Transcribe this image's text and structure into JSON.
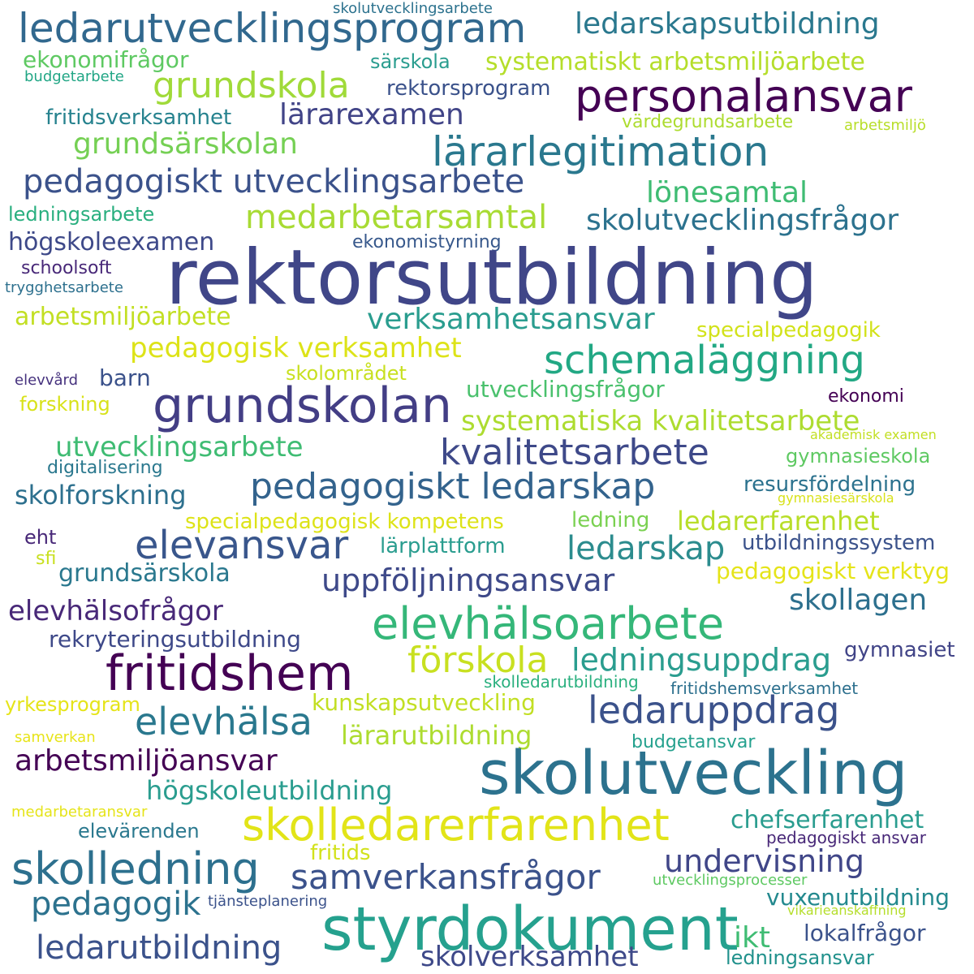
{
  "words": [
    {
      "text": "skolutvecklingsarbete",
      "color": "#2c728e"
    },
    {
      "text": "ledarutvecklingsprogram",
      "color": "#31688e"
    },
    {
      "text": "ledarskapsutbildning",
      "color": "#2a788e"
    },
    {
      "text": "ekonomifrågor",
      "color": "#5ec962"
    },
    {
      "text": "särskola",
      "color": "#2a9d8f"
    },
    {
      "text": "systematiskt arbetsmiljöarbete",
      "color": "#b5de2b"
    },
    {
      "text": "budgetarbete",
      "color": "#21a685"
    },
    {
      "text": "grundskola",
      "color": "#a0da39"
    },
    {
      "text": "rektorsprogram",
      "color": "#3b528b"
    },
    {
      "text": "personalansvar",
      "color": "#440154"
    },
    {
      "text": "fritidsverksamhet",
      "color": "#26828e"
    },
    {
      "text": "lärarexamen",
      "color": "#414487"
    },
    {
      "text": "värdegrundsarbete",
      "color": "#addc30"
    },
    {
      "text": "arbetsmiljö",
      "color": "#b8de29"
    },
    {
      "text": "grundsärskolan",
      "color": "#75d054"
    },
    {
      "text": "lärarlegitimation",
      "color": "#2a788e"
    },
    {
      "text": "pedagogiskt utvecklingsarbete",
      "color": "#3b528b"
    },
    {
      "text": "lönesamtal",
      "color": "#3fbc73"
    },
    {
      "text": "ledningsarbete",
      "color": "#29af7f"
    },
    {
      "text": "medarbetarsamtal",
      "color": "#a8db34"
    },
    {
      "text": "skolutvecklingsfrågor",
      "color": "#2c728e"
    },
    {
      "text": "högskoleexamen",
      "color": "#3e4989"
    },
    {
      "text": "ekonomistyrning",
      "color": "#38598c"
    },
    {
      "text": "rektorsutbildning",
      "color": "#404688"
    },
    {
      "text": "schoolsoft",
      "color": "#482878"
    },
    {
      "text": "trygghetsarbete",
      "color": "#2d708e"
    },
    {
      "text": "arbetsmiljöarbete",
      "color": "#c2df23"
    },
    {
      "text": "verksamhetsansvar",
      "color": "#2a9d8f"
    },
    {
      "text": "specialpedagogik",
      "color": "#d2e21b"
    },
    {
      "text": "pedagogisk verksamhet",
      "color": "#dde318"
    },
    {
      "text": "schemaläggning",
      "color": "#22a884"
    },
    {
      "text": "elevvård",
      "color": "#46327e"
    },
    {
      "text": "barn",
      "color": "#3b528b"
    },
    {
      "text": "skolområdet",
      "color": "#c8e020"
    },
    {
      "text": "grundskolan",
      "color": "#433e85"
    },
    {
      "text": "utvecklingsfrågor",
      "color": "#4ac16d"
    },
    {
      "text": "forskning",
      "color": "#d8e219"
    },
    {
      "text": "ekonomi",
      "color": "#440154"
    },
    {
      "text": "systematiska kvalitetsarbete",
      "color": "#addc30"
    },
    {
      "text": "akademisk examen",
      "color": "#c2df23"
    },
    {
      "text": "utvecklingsarbete",
      "color": "#3fbc73"
    },
    {
      "text": "kvalitetsarbete",
      "color": "#3e4989"
    },
    {
      "text": "gymnasieskola",
      "color": "#5ec962"
    },
    {
      "text": "digitalisering",
      "color": "#2a788e"
    },
    {
      "text": "pedagogiskt ledarskap",
      "color": "#33638d"
    },
    {
      "text": "resursfördelning",
      "color": "#2c728e"
    },
    {
      "text": "skolforskning",
      "color": "#2d708e"
    },
    {
      "text": "gymnasiesärskola",
      "color": "#d8e219"
    },
    {
      "text": "specialpedagogisk kompetens",
      "color": "#dde318"
    },
    {
      "text": "ledning",
      "color": "#7ad151"
    },
    {
      "text": "ledarerfarenhet",
      "color": "#b8de29"
    },
    {
      "text": "eht",
      "color": "#482878"
    },
    {
      "text": "elevansvar",
      "color": "#39568c"
    },
    {
      "text": "lärplattform",
      "color": "#2a9d8f"
    },
    {
      "text": "ledarskap",
      "color": "#2c8c8e"
    },
    {
      "text": "utbildningssystem",
      "color": "#3b528b"
    },
    {
      "text": "sfi",
      "color": "#c8e020"
    },
    {
      "text": "grundsärskola",
      "color": "#2a788e"
    },
    {
      "text": "pedagogiskt verktyg",
      "color": "#e5e419"
    },
    {
      "text": "uppföljningsansvar",
      "color": "#3e4989"
    },
    {
      "text": "elevhälsofrågor",
      "color": "#482878"
    },
    {
      "text": "skollagen",
      "color": "#2d708e"
    },
    {
      "text": "elevhälsoarbete",
      "color": "#35b779"
    },
    {
      "text": "rekryteringsutbildning",
      "color": "#3e4989"
    },
    {
      "text": "fritidshem",
      "color": "#440154"
    },
    {
      "text": "förskola",
      "color": "#c8e020"
    },
    {
      "text": "ledningsuppdrag",
      "color": "#2a9d8f"
    },
    {
      "text": "gymnasiet",
      "color": "#414487"
    },
    {
      "text": "skolledarutbildning",
      "color": "#2ab07f"
    },
    {
      "text": "fritidshemsverksamhet",
      "color": "#2d708e"
    },
    {
      "text": "yrkesprogram",
      "color": "#e5e419"
    },
    {
      "text": "kunskapsutveckling",
      "color": "#c2df23"
    },
    {
      "text": "elevhälsa",
      "color": "#2a788e"
    },
    {
      "text": "ledaruppdrag",
      "color": "#3b528b"
    },
    {
      "text": "samverkan",
      "color": "#e7e419"
    },
    {
      "text": "lärarutbildning",
      "color": "#addc30"
    },
    {
      "text": "budgetansvar",
      "color": "#25a18e"
    },
    {
      "text": "arbetsmiljöansvar",
      "color": "#440154"
    },
    {
      "text": "skolutveckling",
      "color": "#2c728e"
    },
    {
      "text": "högskoleutbildning",
      "color": "#2a9d8f"
    },
    {
      "text": "medarbetaransvar",
      "color": "#e5e419"
    },
    {
      "text": "skolledarerfarenhet",
      "color": "#e2e418"
    },
    {
      "text": "chefserfarenhet",
      "color": "#2a9d8f"
    },
    {
      "text": "elevärenden",
      "color": "#2a788e"
    },
    {
      "text": "pedagogiskt ansvar",
      "color": "#482878"
    },
    {
      "text": "fritids",
      "color": "#d2e21b"
    },
    {
      "text": "skolledning",
      "color": "#2d708e"
    },
    {
      "text": "samverkansfrågor",
      "color": "#3b528b"
    },
    {
      "text": "undervisning",
      "color": "#404688"
    },
    {
      "text": "utvecklingsprocesser",
      "color": "#5ec962"
    },
    {
      "text": "pedagogik",
      "color": "#2c728e"
    },
    {
      "text": "tjänsteplanering",
      "color": "#3b528b"
    },
    {
      "text": "vuxenutbildning",
      "color": "#23898e"
    },
    {
      "text": "vikarieanskaffning",
      "color": "#b5de2b"
    },
    {
      "text": "styrdokument",
      "color": "#25a18e"
    },
    {
      "text": "ikt",
      "color": "#3fbc73"
    },
    {
      "text": "lokalfrågor",
      "color": "#3b528b"
    },
    {
      "text": "ledarutbildning",
      "color": "#3b528b"
    },
    {
      "text": "skolverksamhet",
      "color": "#3e4989"
    },
    {
      "text": "ledningsansvar",
      "color": "#21918c"
    }
  ]
}
